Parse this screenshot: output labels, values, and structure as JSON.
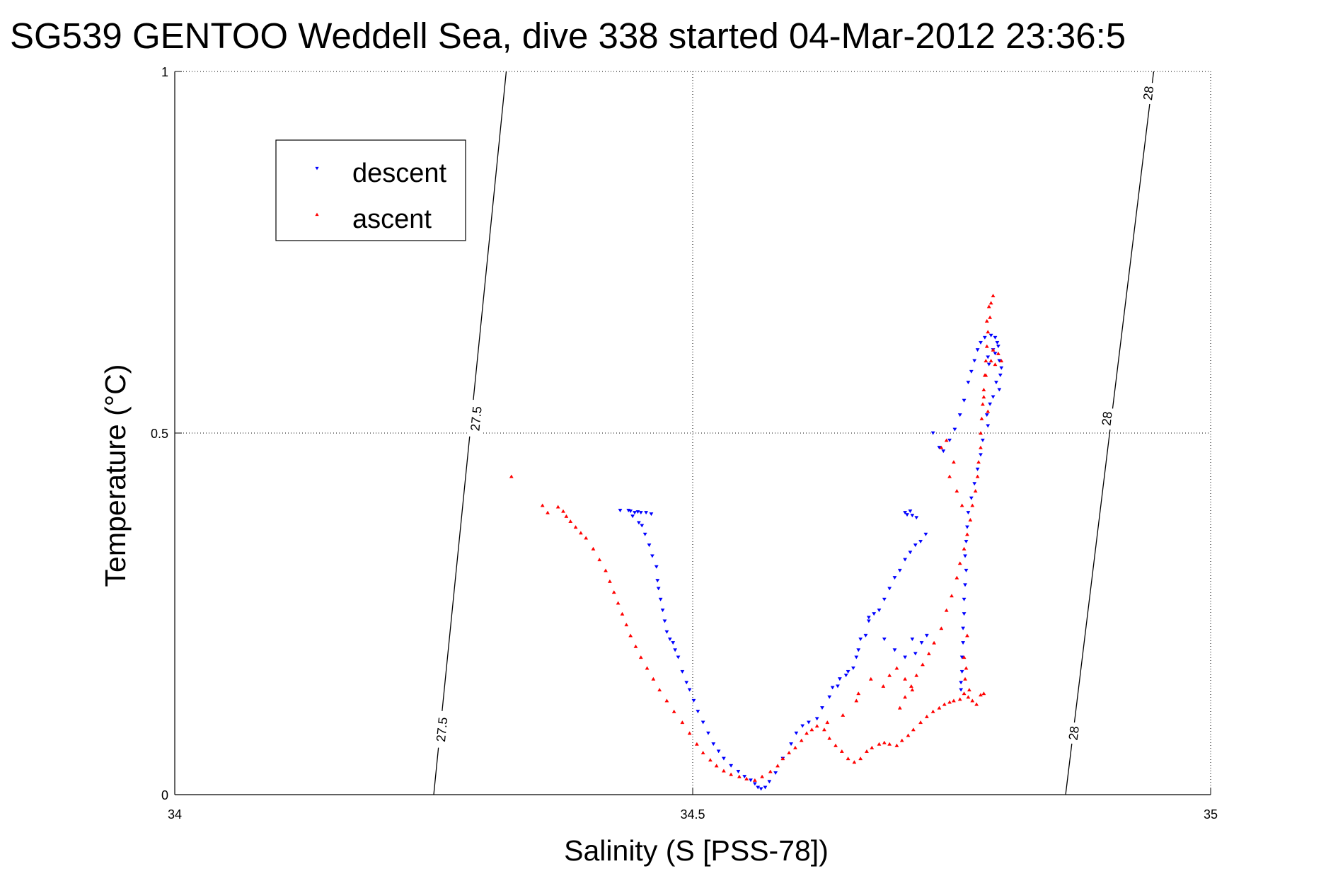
{
  "chart_data": {
    "type": "scatter",
    "title": "SG539 GENTOO Weddell Sea, dive 338 started 04-Mar-2012 23:36:5",
    "xlabel": "Salinity (S [PSS-78])",
    "ylabel": "Temperature (°C)",
    "xlim": [
      34,
      35
    ],
    "ylim": [
      0,
      1
    ],
    "xticks": [
      "34",
      "34.5",
      "35"
    ],
    "yticks": [
      "0",
      "0.5",
      "1"
    ],
    "grid": true,
    "legend_position": "top-left",
    "density_contours": [
      {
        "label": "27.5",
        "bottom": [
          34.25,
          0
        ],
        "top": [
          34.32,
          1
        ],
        "label_positions": [
          [
            34.258,
            0.09
          ],
          [
            34.291,
            0.52
          ]
        ]
      },
      {
        "label": "28",
        "bottom": [
          34.86,
          0
        ],
        "top": [
          34.945,
          1
        ],
        "label_positions": [
          [
            34.868,
            0.085
          ],
          [
            34.9,
            0.52
          ],
          [
            34.94,
            0.97
          ]
        ]
      }
    ],
    "series": [
      {
        "name": "descent",
        "color": "#0000ff",
        "marker": "triangle-down",
        "points": [
          [
            34.43,
            0.393
          ],
          [
            34.438,
            0.393
          ],
          [
            34.44,
            0.392
          ],
          [
            34.444,
            0.39
          ],
          [
            34.447,
            0.391
          ],
          [
            34.45,
            0.39
          ],
          [
            34.455,
            0.39
          ],
          [
            34.46,
            0.388
          ],
          [
            34.442,
            0.385
          ],
          [
            34.448,
            0.376
          ],
          [
            34.451,
            0.372
          ],
          [
            34.454,
            0.36
          ],
          [
            34.458,
            0.345
          ],
          [
            34.461,
            0.33
          ],
          [
            34.465,
            0.315
          ],
          [
            34.466,
            0.296
          ],
          [
            34.467,
            0.285
          ],
          [
            34.469,
            0.27
          ],
          [
            34.471,
            0.255
          ],
          [
            34.473,
            0.24
          ],
          [
            34.475,
            0.225
          ],
          [
            34.478,
            0.215
          ],
          [
            34.481,
            0.21
          ],
          [
            34.483,
            0.2
          ],
          [
            34.486,
            0.19
          ],
          [
            34.49,
            0.17
          ],
          [
            34.494,
            0.155
          ],
          [
            34.497,
            0.145
          ],
          [
            34.501,
            0.13
          ],
          [
            34.505,
            0.115
          ],
          [
            34.51,
            0.1
          ],
          [
            34.515,
            0.085
          ],
          [
            34.52,
            0.07
          ],
          [
            34.525,
            0.06
          ],
          [
            34.53,
            0.05
          ],
          [
            34.537,
            0.04
          ],
          [
            34.544,
            0.032
          ],
          [
            34.55,
            0.025
          ],
          [
            34.556,
            0.02
          ],
          [
            34.56,
            0.015
          ],
          [
            34.563,
            0.01
          ],
          [
            34.566,
            0.008
          ],
          [
            34.57,
            0.01
          ],
          [
            34.574,
            0.018
          ],
          [
            34.58,
            0.03
          ],
          [
            34.587,
            0.05
          ],
          [
            34.595,
            0.07
          ],
          [
            34.6,
            0.085
          ],
          [
            34.606,
            0.095
          ],
          [
            34.612,
            0.1
          ],
          [
            34.62,
            0.105
          ],
          [
            34.625,
            0.12
          ],
          [
            34.632,
            0.135
          ],
          [
            34.64,
            0.15
          ],
          [
            34.648,
            0.165
          ],
          [
            34.655,
            0.175
          ],
          [
            34.66,
            0.2
          ],
          [
            34.667,
            0.22
          ],
          [
            34.67,
            0.24
          ],
          [
            34.675,
            0.25
          ],
          [
            34.68,
            0.255
          ],
          [
            34.685,
            0.27
          ],
          [
            34.69,
            0.285
          ],
          [
            34.695,
            0.3
          ],
          [
            34.7,
            0.31
          ],
          [
            34.705,
            0.325
          ],
          [
            34.71,
            0.335
          ],
          [
            34.715,
            0.345
          ],
          [
            34.72,
            0.35
          ],
          [
            34.725,
            0.36
          ],
          [
            34.705,
            0.39
          ],
          [
            34.71,
            0.392
          ],
          [
            34.712,
            0.386
          ],
          [
            34.707,
            0.387
          ],
          [
            34.716,
            0.383
          ],
          [
            34.67,
            0.245
          ],
          [
            34.662,
            0.215
          ],
          [
            34.658,
            0.19
          ],
          [
            34.65,
            0.17
          ],
          [
            34.642,
            0.16
          ],
          [
            34.635,
            0.148
          ],
          [
            34.685,
            0.215
          ],
          [
            34.695,
            0.2
          ],
          [
            34.705,
            0.19
          ],
          [
            34.715,
            0.195
          ],
          [
            34.712,
            0.215
          ],
          [
            34.721,
            0.21
          ],
          [
            34.726,
            0.22
          ],
          [
            34.732,
            0.5
          ],
          [
            34.738,
            0.48
          ],
          [
            34.742,
            0.475
          ],
          [
            34.748,
            0.49
          ],
          [
            34.753,
            0.505
          ],
          [
            34.758,
            0.525
          ],
          [
            34.762,
            0.545
          ],
          [
            34.766,
            0.57
          ],
          [
            34.769,
            0.585
          ],
          [
            34.772,
            0.6
          ],
          [
            34.775,
            0.615
          ],
          [
            34.778,
            0.625
          ],
          [
            34.782,
            0.632
          ],
          [
            34.788,
            0.635
          ],
          [
            34.792,
            0.632
          ],
          [
            34.795,
            0.62
          ],
          [
            34.792,
            0.61
          ],
          [
            34.796,
            0.6
          ],
          [
            34.798,
            0.59
          ],
          [
            34.797,
            0.58
          ],
          [
            34.793,
            0.57
          ],
          [
            34.796,
            0.56
          ],
          [
            34.79,
            0.55
          ],
          [
            34.787,
            0.54
          ],
          [
            34.784,
            0.525
          ],
          [
            34.785,
            0.51
          ],
          [
            34.78,
            0.49
          ],
          [
            34.778,
            0.47
          ],
          [
            34.775,
            0.45
          ],
          [
            34.772,
            0.43
          ],
          [
            34.769,
            0.41
          ],
          [
            34.766,
            0.39
          ],
          [
            34.765,
            0.37
          ],
          [
            34.764,
            0.35
          ],
          [
            34.763,
            0.33
          ],
          [
            34.764,
            0.31
          ],
          [
            34.763,
            0.29
          ],
          [
            34.762,
            0.27
          ],
          [
            34.762,
            0.25
          ],
          [
            34.761,
            0.23
          ],
          [
            34.761,
            0.21
          ],
          [
            34.76,
            0.19
          ],
          [
            34.76,
            0.17
          ],
          [
            34.759,
            0.155
          ],
          [
            34.759,
            0.145
          ],
          [
            34.785,
            0.605
          ],
          [
            34.79,
            0.615
          ],
          [
            34.794,
            0.625
          ],
          [
            34.786,
            0.595
          ]
        ]
      },
      {
        "name": "ascent",
        "color": "#ff0000",
        "marker": "triangle-up",
        "points": [
          [
            34.325,
            0.44
          ],
          [
            34.355,
            0.4
          ],
          [
            34.36,
            0.39
          ],
          [
            34.37,
            0.398
          ],
          [
            34.375,
            0.392
          ],
          [
            34.378,
            0.385
          ],
          [
            34.382,
            0.378
          ],
          [
            34.387,
            0.37
          ],
          [
            34.392,
            0.362
          ],
          [
            34.397,
            0.355
          ],
          [
            34.404,
            0.34
          ],
          [
            34.41,
            0.325
          ],
          [
            34.416,
            0.31
          ],
          [
            34.42,
            0.295
          ],
          [
            34.424,
            0.28
          ],
          [
            34.428,
            0.265
          ],
          [
            34.432,
            0.25
          ],
          [
            34.436,
            0.235
          ],
          [
            34.44,
            0.22
          ],
          [
            34.445,
            0.205
          ],
          [
            34.45,
            0.19
          ],
          [
            34.456,
            0.175
          ],
          [
            34.462,
            0.16
          ],
          [
            34.468,
            0.145
          ],
          [
            34.475,
            0.13
          ],
          [
            34.482,
            0.115
          ],
          [
            34.49,
            0.1
          ],
          [
            34.497,
            0.085
          ],
          [
            34.504,
            0.07
          ],
          [
            34.51,
            0.058
          ],
          [
            34.517,
            0.048
          ],
          [
            34.523,
            0.04
          ],
          [
            34.53,
            0.033
          ],
          [
            34.537,
            0.028
          ],
          [
            34.545,
            0.025
          ],
          [
            34.552,
            0.022
          ],
          [
            34.56,
            0.02
          ],
          [
            34.567,
            0.025
          ],
          [
            34.575,
            0.032
          ],
          [
            34.582,
            0.04
          ],
          [
            34.587,
            0.05
          ],
          [
            34.593,
            0.058
          ],
          [
            34.599,
            0.065
          ],
          [
            34.605,
            0.075
          ],
          [
            34.61,
            0.085
          ],
          [
            34.615,
            0.09
          ],
          [
            34.62,
            0.095
          ],
          [
            34.627,
            0.09
          ],
          [
            34.632,
            0.078
          ],
          [
            34.638,
            0.068
          ],
          [
            34.644,
            0.06
          ],
          [
            34.65,
            0.05
          ],
          [
            34.656,
            0.045
          ],
          [
            34.662,
            0.05
          ],
          [
            34.668,
            0.06
          ],
          [
            34.673,
            0.065
          ],
          [
            34.68,
            0.07
          ],
          [
            34.685,
            0.072
          ],
          [
            34.69,
            0.07
          ],
          [
            34.697,
            0.068
          ],
          [
            34.702,
            0.075
          ],
          [
            34.708,
            0.082
          ],
          [
            34.713,
            0.09
          ],
          [
            34.72,
            0.1
          ],
          [
            34.726,
            0.108
          ],
          [
            34.732,
            0.115
          ],
          [
            34.738,
            0.12
          ],
          [
            34.743,
            0.125
          ],
          [
            34.748,
            0.128
          ],
          [
            34.752,
            0.13
          ],
          [
            34.758,
            0.132
          ],
          [
            34.762,
            0.14
          ],
          [
            34.766,
            0.135
          ],
          [
            34.77,
            0.13
          ],
          [
            34.774,
            0.125
          ],
          [
            34.778,
            0.138
          ],
          [
            34.781,
            0.14
          ],
          [
            34.7,
            0.12
          ],
          [
            34.705,
            0.135
          ],
          [
            34.711,
            0.15
          ],
          [
            34.716,
            0.165
          ],
          [
            34.722,
            0.18
          ],
          [
            34.728,
            0.195
          ],
          [
            34.733,
            0.21
          ],
          [
            34.74,
            0.23
          ],
          [
            34.745,
            0.255
          ],
          [
            34.75,
            0.275
          ],
          [
            34.755,
            0.3
          ],
          [
            34.758,
            0.32
          ],
          [
            34.762,
            0.34
          ],
          [
            34.765,
            0.36
          ],
          [
            34.768,
            0.38
          ],
          [
            34.77,
            0.4
          ],
          [
            34.773,
            0.42
          ],
          [
            34.775,
            0.44
          ],
          [
            34.776,
            0.46
          ],
          [
            34.778,
            0.48
          ],
          [
            34.778,
            0.5
          ],
          [
            34.779,
            0.52
          ],
          [
            34.78,
            0.54
          ],
          [
            34.781,
            0.56
          ],
          [
            34.782,
            0.58
          ],
          [
            34.783,
            0.6
          ],
          [
            34.784,
            0.62
          ],
          [
            34.785,
            0.64
          ],
          [
            34.787,
            0.66
          ],
          [
            34.788,
            0.68
          ],
          [
            34.79,
            0.69
          ],
          [
            34.786,
            0.675
          ],
          [
            34.784,
            0.655
          ],
          [
            34.79,
            0.615
          ],
          [
            34.795,
            0.61
          ],
          [
            34.798,
            0.6
          ],
          [
            34.792,
            0.595
          ],
          [
            34.788,
            0.6
          ],
          [
            34.783,
            0.58
          ],
          [
            34.781,
            0.55
          ],
          [
            34.785,
            0.53
          ],
          [
            34.74,
            0.48
          ],
          [
            34.745,
            0.49
          ],
          [
            34.752,
            0.46
          ],
          [
            34.748,
            0.44
          ],
          [
            34.755,
            0.42
          ],
          [
            34.76,
            0.4
          ],
          [
            34.765,
            0.22
          ],
          [
            34.762,
            0.19
          ],
          [
            34.764,
            0.175
          ],
          [
            34.763,
            0.16
          ],
          [
            34.767,
            0.145
          ],
          [
            34.66,
            0.14
          ],
          [
            34.672,
            0.16
          ],
          [
            34.684,
            0.15
          ],
          [
            34.69,
            0.165
          ],
          [
            34.697,
            0.175
          ],
          [
            34.705,
            0.16
          ],
          [
            34.712,
            0.145
          ],
          [
            34.658,
            0.13
          ],
          [
            34.645,
            0.11
          ],
          [
            34.63,
            0.1
          ]
        ]
      }
    ]
  }
}
